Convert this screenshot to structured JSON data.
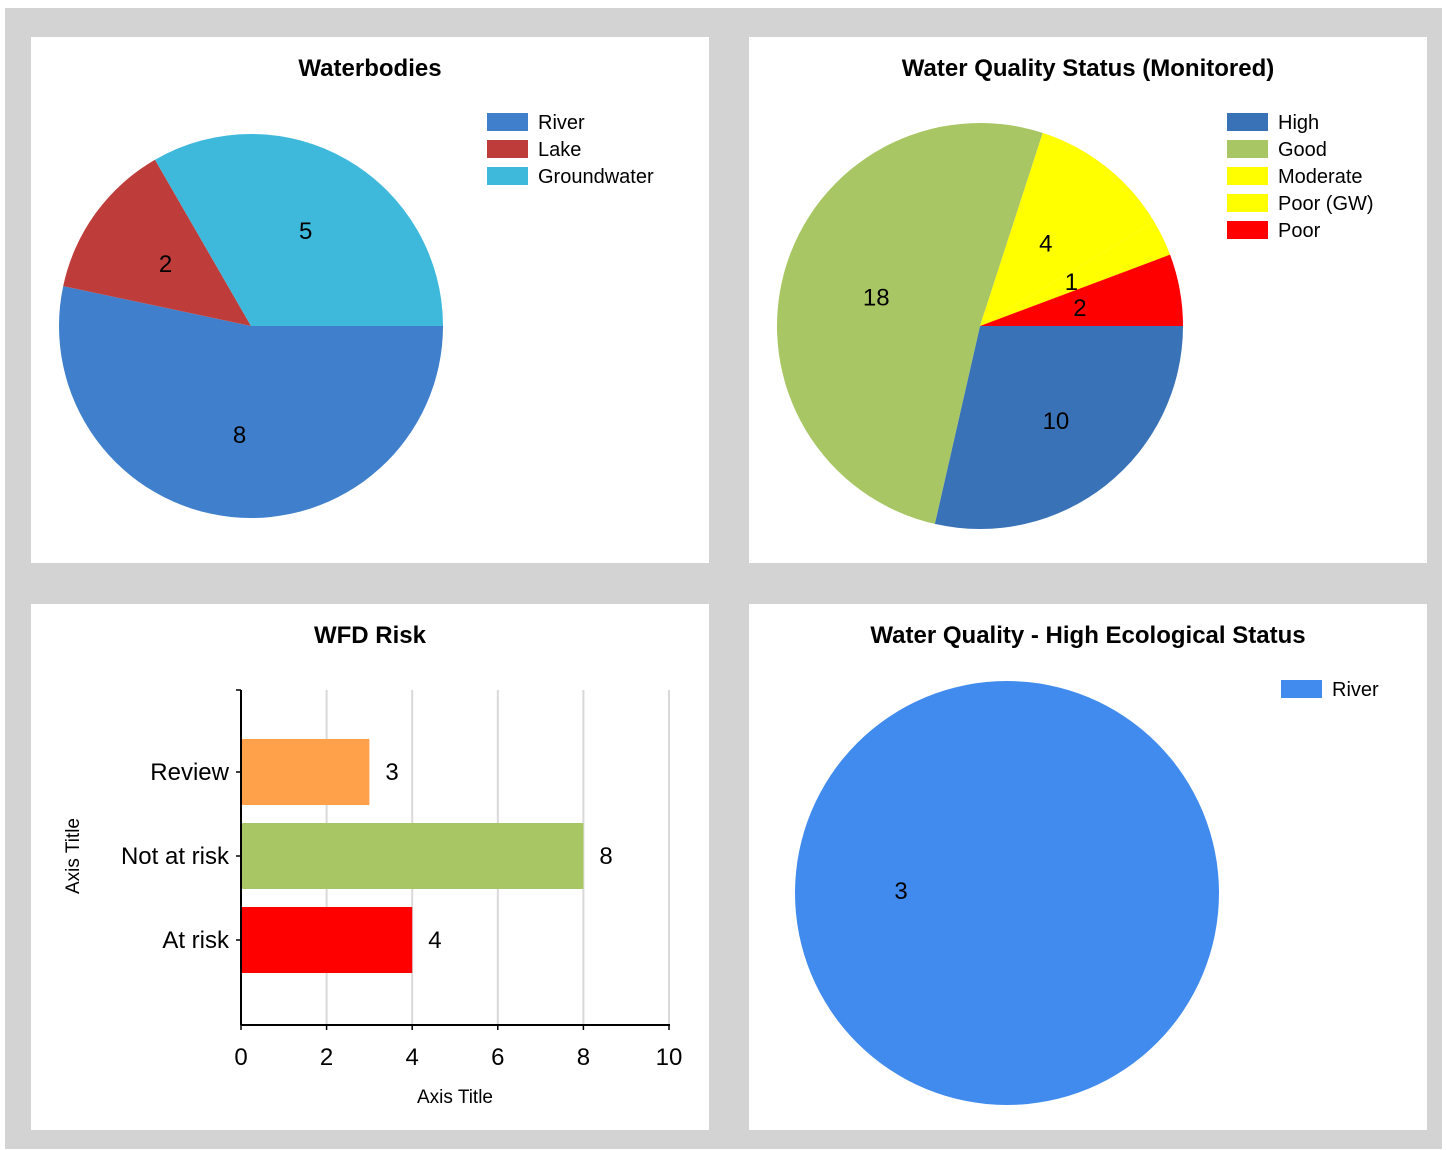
{
  "chart_data": [
    {
      "type": "pie",
      "title": "Waterbodies",
      "slices": [
        {
          "name": "River",
          "value": 8,
          "color": "#3f7fcb"
        },
        {
          "name": "Lake",
          "value": 2,
          "color": "#be3d3b"
        },
        {
          "name": "Groundwater",
          "value": 5,
          "color": "#3eb9dc"
        }
      ],
      "legend_position": "top-right"
    },
    {
      "type": "pie",
      "title": "Water Quality Status (Monitored)",
      "slices": [
        {
          "name": "High",
          "value": 10,
          "color": "#3a72b8"
        },
        {
          "name": "Good",
          "value": 18,
          "color": "#a8c663"
        },
        {
          "name": "Moderate",
          "value": 4,
          "color": "#ffff00"
        },
        {
          "name": "Poor (GW)",
          "value": 1,
          "color": "#ffff00"
        },
        {
          "name": "Poor",
          "value": 2,
          "color": "#ff0000"
        }
      ],
      "legend_position": "top-right"
    },
    {
      "type": "bar",
      "orientation": "horizontal",
      "title": "WFD Risk",
      "categories": [
        "Review",
        "Not at risk",
        "At risk"
      ],
      "values": [
        3,
        8,
        4
      ],
      "colors": [
        "#ffa04b",
        "#a8c663",
        "#ff0000"
      ],
      "xlabel": "Axis Title",
      "ylabel": "Axis Title",
      "xlim": [
        0,
        10
      ],
      "xticks": [
        0,
        2,
        4,
        6,
        8,
        10
      ],
      "grid": true
    },
    {
      "type": "pie",
      "title": "Water Quality - High Ecological Status",
      "slices": [
        {
          "name": "River",
          "value": 3,
          "color": "#418bee"
        }
      ],
      "legend_position": "top-right"
    }
  ]
}
